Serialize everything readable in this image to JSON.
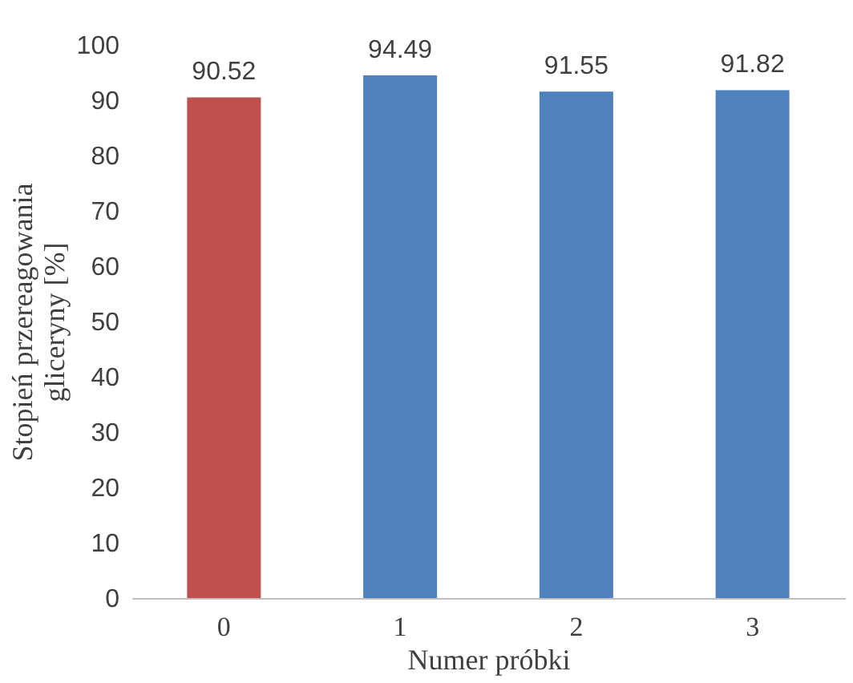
{
  "chart_data": {
    "type": "bar",
    "xlabel": "Numer próbki",
    "ylabel": "Stopień przereagowania\ngliceryny [%]",
    "categories": [
      "0",
      "1",
      "2",
      "3"
    ],
    "values": [
      90.52,
      94.49,
      91.55,
      91.82
    ],
    "colors": [
      "#c0504d",
      "#4f81bd",
      "#4f81bd",
      "#4f81bd"
    ],
    "ylim": [
      0,
      100
    ],
    "yticks": [
      0,
      10,
      20,
      30,
      40,
      50,
      60,
      70,
      80,
      90,
      100
    ],
    "grid": false,
    "data_labels": true
  }
}
